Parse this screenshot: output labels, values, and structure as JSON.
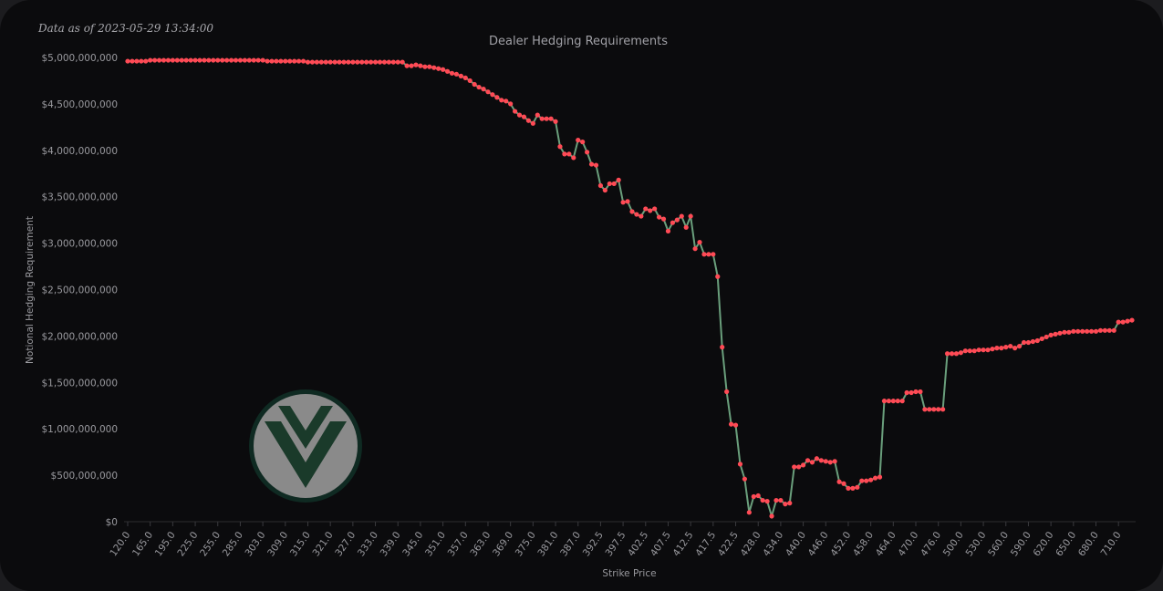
{
  "chart_data": {
    "type": "line",
    "timestamp": "Data as of 2023-05-29 13:34:00",
    "title": "Dealer Hedging Requirements",
    "x_label": "Strike Price",
    "y_label": "Notional Hedging Requirement",
    "line_color": "#6a9f7c",
    "marker_color": "#ff4a55",
    "grid": false,
    "ylim": [
      0,
      5000000000
    ],
    "yticks": [
      {
        "value": 0,
        "label": "$0"
      },
      {
        "value": 500000000,
        "label": "$500,000,000"
      },
      {
        "value": 1000000000,
        "label": "$1,000,000,000"
      },
      {
        "value": 1500000000,
        "label": "$1,500,000,000"
      },
      {
        "value": 2000000000,
        "label": "$2,000,000,000"
      },
      {
        "value": 2500000000,
        "label": "$2,500,000,000"
      },
      {
        "value": 3000000000,
        "label": "$3,000,000,000"
      },
      {
        "value": 3500000000,
        "label": "$3,500,000,000"
      },
      {
        "value": 4000000000,
        "label": "$4,000,000,000"
      },
      {
        "value": 4500000000,
        "label": "$4,500,000,000"
      },
      {
        "value": 5000000000,
        "label": "$5,000,000,000"
      }
    ],
    "categories": [
      "120.0",
      null,
      null,
      null,
      null,
      "165.0",
      null,
      null,
      null,
      null,
      "195.0",
      null,
      null,
      null,
      null,
      "225.0",
      null,
      null,
      null,
      null,
      "255.0",
      null,
      null,
      null,
      null,
      "285.0",
      null,
      null,
      null,
      null,
      "303.0",
      null,
      null,
      null,
      null,
      "309.0",
      null,
      null,
      null,
      null,
      "315.0",
      null,
      null,
      null,
      null,
      "321.0",
      null,
      null,
      null,
      null,
      "327.0",
      null,
      null,
      null,
      null,
      "333.0",
      null,
      null,
      null,
      null,
      "339.0",
      null,
      null,
      null,
      null,
      "345.0",
      null,
      null,
      null,
      null,
      "351.0",
      null,
      null,
      null,
      null,
      "357.0",
      null,
      null,
      null,
      null,
      "363.0",
      null,
      null,
      null,
      null,
      "369.0",
      null,
      null,
      null,
      null,
      "375.0",
      null,
      null,
      null,
      null,
      "381.0",
      null,
      null,
      null,
      null,
      "387.0",
      null,
      null,
      null,
      null,
      "392.5",
      null,
      null,
      null,
      null,
      "397.5",
      null,
      null,
      null,
      null,
      "402.5",
      null,
      null,
      null,
      null,
      "407.5",
      null,
      null,
      null,
      null,
      "412.5",
      null,
      null,
      null,
      null,
      "417.5",
      null,
      null,
      null,
      null,
      "422.5",
      null,
      null,
      null,
      null,
      "428.0",
      null,
      null,
      null,
      null,
      "434.0",
      null,
      null,
      null,
      null,
      "440.0",
      null,
      null,
      null,
      null,
      "446.0",
      null,
      null,
      null,
      null,
      "452.0",
      null,
      null,
      null,
      null,
      "458.0",
      null,
      null,
      null,
      null,
      "464.0",
      null,
      null,
      null,
      null,
      "470.0",
      null,
      null,
      null,
      null,
      "476.0",
      null,
      null,
      null,
      null,
      "500.0",
      null,
      null,
      null,
      null,
      "530.0",
      null,
      null,
      null,
      null,
      "560.0",
      null,
      null,
      null,
      null,
      "590.0",
      null,
      null,
      null,
      null,
      "620.0",
      null,
      null,
      null,
      null,
      "650.0",
      null,
      null,
      null,
      null,
      "680.0",
      null,
      null,
      null,
      null,
      "710.0",
      null,
      null,
      null
    ],
    "values": [
      4960000000,
      4960000000,
      4960000000,
      4960000000,
      4960000000,
      4970000000,
      4970000000,
      4970000000,
      4970000000,
      4970000000,
      4970000000,
      4970000000,
      4970000000,
      4970000000,
      4970000000,
      4970000000,
      4970000000,
      4970000000,
      4970000000,
      4970000000,
      4970000000,
      4970000000,
      4970000000,
      4970000000,
      4970000000,
      4970000000,
      4970000000,
      4970000000,
      4970000000,
      4970000000,
      4970000000,
      4960000000,
      4960000000,
      4960000000,
      4960000000,
      4960000000,
      4960000000,
      4960000000,
      4960000000,
      4960000000,
      4950000000,
      4950000000,
      4950000000,
      4950000000,
      4950000000,
      4950000000,
      4950000000,
      4950000000,
      4950000000,
      4950000000,
      4950000000,
      4950000000,
      4950000000,
      4950000000,
      4950000000,
      4950000000,
      4950000000,
      4950000000,
      4950000000,
      4950000000,
      4950000000,
      4950000000,
      4910000000,
      4910000000,
      4920000000,
      4910000000,
      4900000000,
      4900000000,
      4890000000,
      4880000000,
      4870000000,
      4850000000,
      4830000000,
      4820000000,
      4800000000,
      4780000000,
      4750000000,
      4710000000,
      4680000000,
      4660000000,
      4630000000,
      4600000000,
      4570000000,
      4540000000,
      4530000000,
      4500000000,
      4420000000,
      4380000000,
      4360000000,
      4320000000,
      4290000000,
      4380000000,
      4340000000,
      4340000000,
      4340000000,
      4310000000,
      4040000000,
      3960000000,
      3960000000,
      3920000000,
      4110000000,
      4090000000,
      3980000000,
      3850000000,
      3840000000,
      3620000000,
      3570000000,
      3640000000,
      3640000000,
      3680000000,
      3440000000,
      3450000000,
      3340000000,
      3310000000,
      3290000000,
      3370000000,
      3350000000,
      3370000000,
      3280000000,
      3260000000,
      3130000000,
      3220000000,
      3250000000,
      3290000000,
      3170000000,
      3290000000,
      2940000000,
      3010000000,
      2880000000,
      2880000000,
      2880000000,
      2640000000,
      1880000000,
      1400000000,
      1050000000,
      1040000000,
      620000000,
      460000000,
      100000000,
      270000000,
      280000000,
      230000000,
      220000000,
      60000000,
      230000000,
      230000000,
      190000000,
      200000000,
      590000000,
      590000000,
      610000000,
      660000000,
      640000000,
      680000000,
      660000000,
      650000000,
      640000000,
      650000000,
      430000000,
      410000000,
      360000000,
      360000000,
      370000000,
      440000000,
      440000000,
      450000000,
      470000000,
      480000000,
      1300000000,
      1300000000,
      1300000000,
      1300000000,
      1300000000,
      1390000000,
      1390000000,
      1400000000,
      1400000000,
      1210000000,
      1210000000,
      1210000000,
      1210000000,
      1210000000,
      1810000000,
      1810000000,
      1810000000,
      1820000000,
      1840000000,
      1840000000,
      1840000000,
      1850000000,
      1850000000,
      1850000000,
      1860000000,
      1870000000,
      1870000000,
      1880000000,
      1890000000,
      1870000000,
      1890000000,
      1930000000,
      1930000000,
      1940000000,
      1950000000,
      1970000000,
      1990000000,
      2010000000,
      2020000000,
      2030000000,
      2040000000,
      2040000000,
      2050000000,
      2050000000,
      2050000000,
      2050000000,
      2050000000,
      2050000000,
      2060000000,
      2060000000,
      2060000000,
      2060000000,
      2150000000,
      2150000000,
      2160000000,
      2170000000
    ]
  }
}
